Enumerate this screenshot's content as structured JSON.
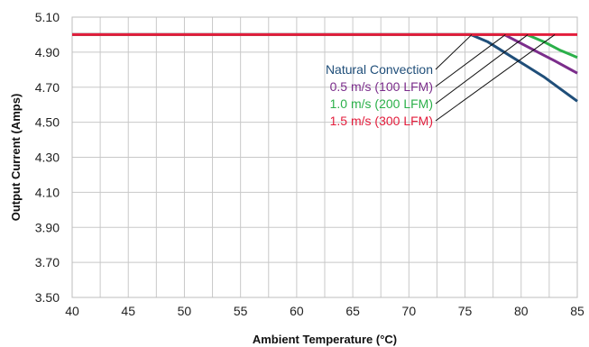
{
  "chart_data": {
    "type": "line",
    "title": "",
    "xlabel": "Ambient Temperature (°C)",
    "ylabel": "Output Current (Amps)",
    "xlim": [
      40,
      85
    ],
    "ylim": [
      3.5,
      5.1
    ],
    "xticks": [
      "40",
      "45",
      "50",
      "55",
      "60",
      "65",
      "70",
      "75",
      "80",
      "85"
    ],
    "yticks": [
      "3.50",
      "3.70",
      "3.90",
      "4.10",
      "4.30",
      "4.50",
      "4.70",
      "4.90",
      "5.10"
    ],
    "grid": true,
    "minor_x_grid_step": 2.5,
    "series": [
      {
        "name": "Natural Convection",
        "color": "#1f4e79",
        "x": [
          40,
          75.5,
          77,
          79,
          80.5,
          82,
          83.5,
          85
        ],
        "y": [
          5.0,
          5.0,
          4.96,
          4.88,
          4.82,
          4.76,
          4.69,
          4.62
        ]
      },
      {
        "name": "0.5 m/s (100 LFM)",
        "color": "#7b2d8b",
        "x": [
          40,
          78.5,
          80,
          81.5,
          83,
          85
        ],
        "y": [
          5.0,
          5.0,
          4.95,
          4.9,
          4.85,
          4.78
        ]
      },
      {
        "name": "1.0 m/s (200 LFM)",
        "color": "#2bb04a",
        "x": [
          40,
          80.5,
          82,
          83.5,
          85
        ],
        "y": [
          5.0,
          5.0,
          4.96,
          4.91,
          4.87
        ]
      },
      {
        "name": "1.5 m/s (300 LFM)",
        "color": "#e31d3c",
        "x": [
          40,
          85
        ],
        "y": [
          5.0,
          5.0
        ]
      }
    ],
    "legend_placement": "inside, right of center with leader lines to curves",
    "legend_leader_targets": [
      [
        75.6,
        5.0
      ],
      [
        78.6,
        5.0
      ],
      [
        80.6,
        5.0
      ],
      [
        83.0,
        5.0
      ]
    ]
  }
}
